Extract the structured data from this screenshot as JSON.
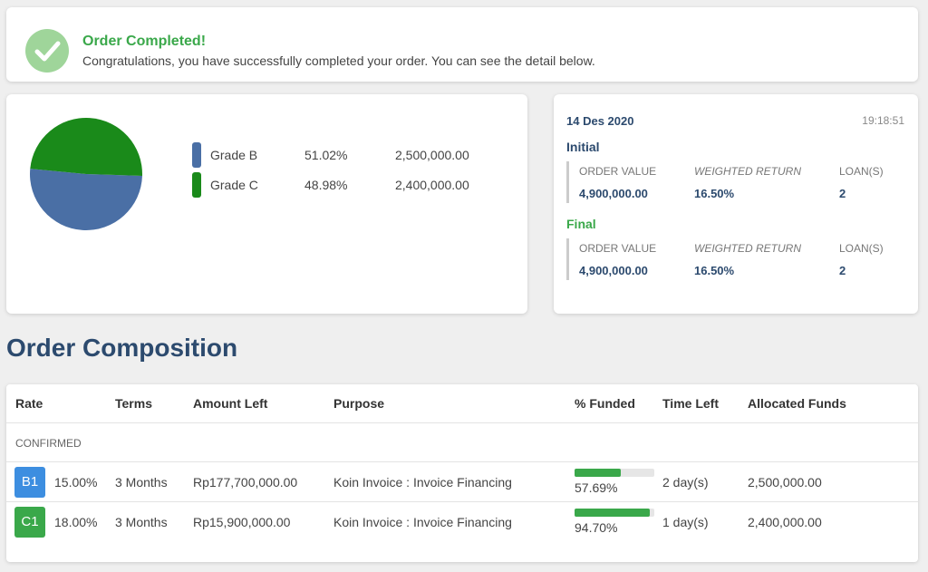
{
  "banner": {
    "title": "Order Completed!",
    "message": "Congratulations, you have successfully completed your order. You can see the detail below.",
    "icon": "check-circle-icon"
  },
  "chart_data": {
    "type": "pie",
    "title": "",
    "slices": [
      {
        "label": "Grade B",
        "value": 51.02,
        "percent": "51.02%",
        "amount": "2,500,000.00",
        "color": "#4a6fa5"
      },
      {
        "label": "Grade C",
        "value": 48.98,
        "percent": "48.98%",
        "amount": "2,400,000.00",
        "color": "#1a8a1a"
      }
    ],
    "legend_placement": "right"
  },
  "summary": {
    "date": "14 Des 2020",
    "time": "19:18:51",
    "initial": {
      "title": "Initial",
      "order_value_label": "ORDER VALUE",
      "weighted_return_label": "WEIGHTED RETURN",
      "loans_label": "LOAN(S)",
      "order_value": "4,900,000.00",
      "weighted_return": "16.50%",
      "loans": "2"
    },
    "final": {
      "title": "Final",
      "order_value_label": "ORDER VALUE",
      "weighted_return_label": "WEIGHTED RETURN",
      "loans_label": "LOAN(S)",
      "order_value": "4,900,000.00",
      "weighted_return": "16.50%",
      "loans": "2"
    }
  },
  "composition": {
    "title": "Order Composition",
    "headers": [
      "Rate",
      "Terms",
      "Amount Left",
      "Purpose",
      "% Funded",
      "Time Left",
      "Allocated Funds"
    ],
    "group_label": "CONFIRMED",
    "rows": [
      {
        "grade": "B1",
        "grade_color": "#3d8ee0",
        "rate": "15.00%",
        "terms": "3 Months",
        "amount_left": "Rp177,700,000.00",
        "purpose": "Koin Invoice : Invoice Financing",
        "funded_fraction": 0.577,
        "funded": "57.69%",
        "time_left": "2 day(s)",
        "allocated": "2,500,000.00"
      },
      {
        "grade": "C1",
        "grade_color": "#3aa84a",
        "rate": "18.00%",
        "terms": "3 Months",
        "amount_left": "Rp15,900,000.00",
        "purpose": "Koin Invoice : Invoice Financing",
        "funded_fraction": 0.947,
        "funded": "94.70%",
        "time_left": "1 day(s)",
        "allocated": "2,400,000.00"
      }
    ]
  },
  "colors": {
    "accent_green": "#3aa84a",
    "navy": "#2c4a6e"
  }
}
